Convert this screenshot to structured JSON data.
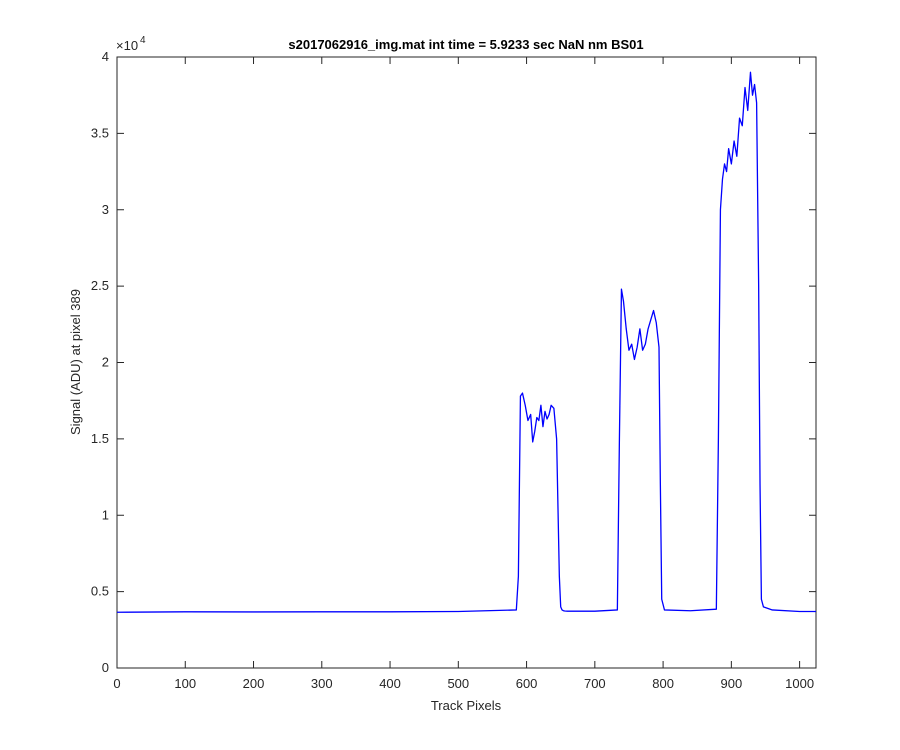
{
  "chart_data": {
    "type": "line",
    "title": "s2017062916_img.mat int time = 5.9233 sec  NaN nm BS01",
    "xlabel": "Track Pixels",
    "ylabel": "Signal (ADU) at pixel 389",
    "y_exponent_label": "×10",
    "y_exponent_power": "4",
    "xlim": [
      0,
      1024
    ],
    "ylim": [
      0,
      4
    ],
    "x_ticks": [
      0,
      100,
      200,
      300,
      400,
      500,
      600,
      700,
      800,
      900,
      1000
    ],
    "x_tick_labels": [
      "0",
      "100",
      "200",
      "300",
      "400",
      "500",
      "600",
      "700",
      "800",
      "900",
      "1000"
    ],
    "y_ticks": [
      0,
      0.5,
      1,
      1.5,
      2,
      2.5,
      3,
      3.5,
      4
    ],
    "y_tick_labels": [
      "0",
      "0.5",
      "1",
      "1.5",
      "2",
      "2.5",
      "3",
      "3.5",
      "4"
    ],
    "grid": false,
    "legend": "none",
    "series": [
      {
        "color": "#0000ff",
        "x": [
          0,
          100,
          200,
          300,
          400,
          500,
          585,
          588,
          591,
          594,
          598,
          602,
          606,
          609,
          612,
          615,
          618,
          621,
          624,
          627,
          630,
          633,
          636,
          640,
          644,
          648,
          650,
          652,
          654,
          656,
          660,
          700,
          733,
          736,
          739,
          742,
          746,
          750,
          754,
          758,
          762,
          766,
          770,
          774,
          778,
          782,
          786,
          790,
          794,
          796,
          798,
          802,
          840,
          878,
          881,
          884,
          887,
          890,
          893,
          896,
          900,
          904,
          908,
          912,
          916,
          920,
          924,
          928,
          931,
          934,
          937,
          940,
          942,
          944,
          947,
          960,
          1000,
          1024
        ],
        "y": [
          0.365,
          0.368,
          0.367,
          0.368,
          0.368,
          0.37,
          0.38,
          0.6,
          1.78,
          1.8,
          1.72,
          1.62,
          1.66,
          1.48,
          1.55,
          1.64,
          1.62,
          1.72,
          1.58,
          1.68,
          1.63,
          1.66,
          1.72,
          1.7,
          1.5,
          0.6,
          0.4,
          0.38,
          0.375,
          0.373,
          0.372,
          0.372,
          0.38,
          1.5,
          2.48,
          2.4,
          2.22,
          2.08,
          2.12,
          2.02,
          2.1,
          2.22,
          2.08,
          2.12,
          2.22,
          2.28,
          2.34,
          2.26,
          2.1,
          1.2,
          0.45,
          0.38,
          0.375,
          0.385,
          1.5,
          3.0,
          3.2,
          3.3,
          3.25,
          3.4,
          3.3,
          3.45,
          3.35,
          3.6,
          3.55,
          3.8,
          3.65,
          3.9,
          3.75,
          3.82,
          3.7,
          2.5,
          1.2,
          0.45,
          0.4,
          0.38,
          0.37,
          0.37
        ]
      }
    ]
  }
}
